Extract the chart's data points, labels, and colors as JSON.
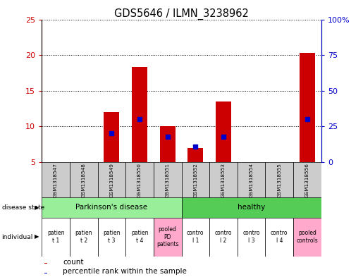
{
  "title": "GDS5646 / ILMN_3238962",
  "samples": [
    "GSM1318547",
    "GSM1318548",
    "GSM1318549",
    "GSM1318550",
    "GSM1318551",
    "GSM1318552",
    "GSM1318553",
    "GSM1318554",
    "GSM1318555",
    "GSM1318556"
  ],
  "count_values": [
    5,
    5,
    12,
    18.3,
    10,
    7,
    13.5,
    5,
    5,
    20.3
  ],
  "percentile_values": [
    null,
    null,
    9.0,
    11.0,
    8.5,
    7.2,
    8.5,
    null,
    null,
    11.0
  ],
  "ylim_left": [
    5,
    25
  ],
  "ylim_right": [
    0,
    100
  ],
  "yticks_left": [
    5,
    10,
    15,
    20,
    25
  ],
  "yticks_right": [
    0,
    25,
    50,
    75,
    100
  ],
  "ytick_labels_left": [
    "5",
    "10",
    "15",
    "20",
    "25"
  ],
  "ytick_labels_right": [
    "0",
    "25",
    "50",
    "75",
    "100%"
  ],
  "bar_color": "#cc0000",
  "blue_color": "#0000cc",
  "disease_groups": [
    {
      "label": "Parkinson's disease",
      "start": 0,
      "end": 4,
      "color": "#99ee99"
    },
    {
      "label": "healthy",
      "start": 5,
      "end": 9,
      "color": "#55cc55"
    }
  ],
  "individuals": [
    "patien\nt 1",
    "patien\nt 2",
    "patien\nt 3",
    "patien\nt 4",
    "pooled\nPD\npatients",
    "contro\nl 1",
    "contro\nl 2",
    "contro\nl 3",
    "contro\nl 4",
    "pooled\ncontrols"
  ],
  "individual_colors": [
    "#ffffff",
    "#ffffff",
    "#ffffff",
    "#ffffff",
    "#ffaacc",
    "#ffffff",
    "#ffffff",
    "#ffffff",
    "#ffffff",
    "#ffaacc"
  ],
  "sample_box_color": "#cccccc",
  "left_axis_color": "#cc0000",
  "right_axis_color": "#0000cc"
}
